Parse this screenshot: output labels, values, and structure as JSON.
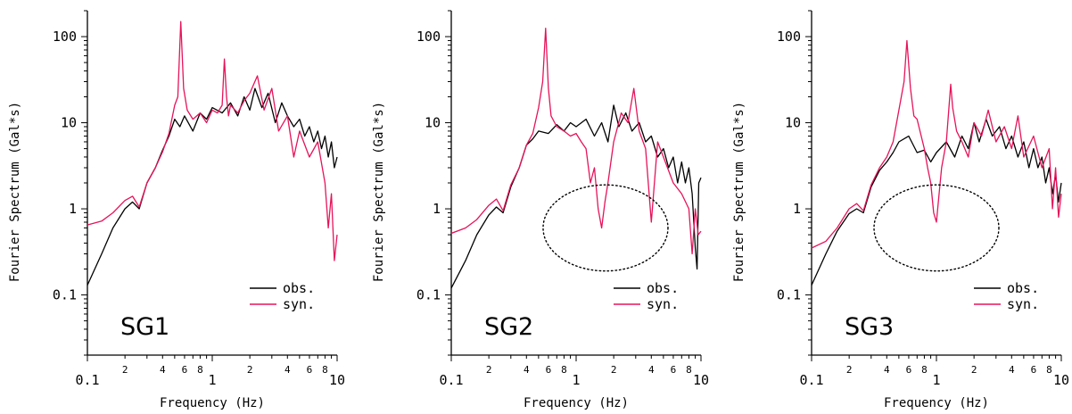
{
  "chart_data": [
    {
      "type": "line",
      "panel_label": "SG1",
      "xlabel": "Frequency (Hz)",
      "ylabel": "Fourier Spectrum (Gal*s)",
      "x_scale": "log",
      "y_scale": "log",
      "xlim": [
        0.1,
        10
      ],
      "ylim": [
        0.02,
        200
      ],
      "x_ticks": [
        {
          "v": 0.1,
          "label": "0.1"
        },
        {
          "v": 1,
          "label": "1"
        },
        {
          "v": 10,
          "label": "10"
        }
      ],
      "x_minor_ticks": [
        {
          "v": 0.2,
          "label": "2"
        },
        {
          "v": 0.4,
          "label": "4"
        },
        {
          "v": 0.6,
          "label": "6"
        },
        {
          "v": 0.8,
          "label": "8"
        },
        {
          "v": 2,
          "label": "2"
        },
        {
          "v": 4,
          "label": "4"
        },
        {
          "v": 6,
          "label": "6"
        },
        {
          "v": 8,
          "label": "8"
        }
      ],
      "y_ticks": [
        {
          "v": 0.1,
          "label": "0.1"
        },
        {
          "v": 1,
          "label": "1"
        },
        {
          "v": 10,
          "label": "10"
        },
        {
          "v": 100,
          "label": "100"
        }
      ],
      "legend": "lower-right",
      "series": [
        {
          "name": "obs.",
          "color": "#000000",
          "x": [
            0.1,
            0.13,
            0.16,
            0.2,
            0.23,
            0.26,
            0.3,
            0.35,
            0.4,
            0.45,
            0.5,
            0.55,
            0.6,
            0.7,
            0.8,
            0.9,
            1.0,
            1.2,
            1.4,
            1.6,
            1.8,
            2.0,
            2.2,
            2.5,
            2.8,
            3.2,
            3.6,
            4.0,
            4.5,
            5.0,
            5.5,
            6.0,
            6.5,
            7.0,
            7.5,
            8.0,
            8.5,
            9.0,
            9.5,
            10.0
          ],
          "y": [
            0.13,
            0.3,
            0.6,
            1.0,
            1.2,
            1.0,
            2.0,
            3.0,
            4.8,
            7.0,
            11.0,
            9.0,
            12.0,
            8.0,
            13.0,
            11.0,
            15.0,
            13.0,
            17.0,
            12.0,
            20.0,
            14.0,
            25.0,
            15.0,
            22.0,
            10.0,
            17.0,
            12.0,
            9.0,
            11.0,
            7.0,
            9.0,
            6.0,
            8.0,
            5.0,
            7.0,
            4.0,
            6.0,
            3.0,
            4.0
          ]
        },
        {
          "name": "syn.",
          "color": "#e6135a",
          "x": [
            0.1,
            0.13,
            0.16,
            0.2,
            0.23,
            0.26,
            0.3,
            0.35,
            0.4,
            0.45,
            0.5,
            0.53,
            0.56,
            0.59,
            0.63,
            0.7,
            0.8,
            0.9,
            1.0,
            1.1,
            1.2,
            1.25,
            1.3,
            1.35,
            1.4,
            1.6,
            1.8,
            2.0,
            2.3,
            2.6,
            3.0,
            3.4,
            4.0,
            4.5,
            5.0,
            6.0,
            7.0,
            8.0,
            8.5,
            9.0,
            9.5,
            10.0
          ],
          "y": [
            0.65,
            0.72,
            0.9,
            1.25,
            1.4,
            1.05,
            2.0,
            3.0,
            4.6,
            7.5,
            16.0,
            20.0,
            150.0,
            25.0,
            14.0,
            11.0,
            13.0,
            10.0,
            14.0,
            13.0,
            16.0,
            55.0,
            20.0,
            12.0,
            16.0,
            13.0,
            18.0,
            22.0,
            35.0,
            14.0,
            25.0,
            8.0,
            12.0,
            4.0,
            8.0,
            4.0,
            6.0,
            2.0,
            0.6,
            1.5,
            0.25,
            0.5
          ]
        }
      ]
    },
    {
      "type": "line",
      "panel_label": "SG2",
      "xlabel": "Frequency (Hz)",
      "ylabel": "Fourier Spectrum (Gal*s)",
      "x_scale": "log",
      "y_scale": "log",
      "xlim": [
        0.1,
        10
      ],
      "ylim": [
        0.02,
        200
      ],
      "x_ticks": [
        {
          "v": 0.1,
          "label": "0.1"
        },
        {
          "v": 1,
          "label": "1"
        },
        {
          "v": 10,
          "label": "10"
        }
      ],
      "x_minor_ticks": [
        {
          "v": 0.2,
          "label": "2"
        },
        {
          "v": 0.4,
          "label": "4"
        },
        {
          "v": 0.6,
          "label": "6"
        },
        {
          "v": 0.8,
          "label": "8"
        },
        {
          "v": 2,
          "label": "2"
        },
        {
          "v": 4,
          "label": "4"
        },
        {
          "v": 6,
          "label": "6"
        },
        {
          "v": 8,
          "label": "8"
        }
      ],
      "y_ticks": [
        {
          "v": 0.1,
          "label": "0.1"
        },
        {
          "v": 1,
          "label": "1"
        },
        {
          "v": 10,
          "label": "10"
        },
        {
          "v": 100,
          "label": "100"
        }
      ],
      "legend": "lower-right",
      "series": [
        {
          "name": "obs.",
          "color": "#000000",
          "x": [
            0.1,
            0.13,
            0.16,
            0.2,
            0.23,
            0.26,
            0.3,
            0.35,
            0.4,
            0.45,
            0.5,
            0.6,
            0.7,
            0.8,
            0.9,
            1.0,
            1.2,
            1.4,
            1.6,
            1.8,
            2.0,
            2.2,
            2.5,
            2.8,
            3.2,
            3.6,
            4.0,
            4.5,
            5.0,
            5.5,
            6.0,
            6.5,
            7.0,
            7.5,
            8.0,
            8.5,
            9.0,
            9.3,
            9.6,
            10.0
          ],
          "y": [
            0.12,
            0.25,
            0.5,
            0.85,
            1.05,
            0.9,
            1.8,
            3.0,
            5.5,
            6.5,
            8.0,
            7.5,
            9.5,
            8.0,
            10.0,
            9.0,
            11.0,
            7.0,
            10.0,
            6.0,
            16.0,
            9.0,
            13.0,
            8.0,
            10.0,
            6.0,
            7.0,
            4.0,
            5.0,
            3.0,
            4.0,
            2.0,
            3.5,
            2.0,
            3.0,
            1.5,
            0.35,
            0.2,
            2.0,
            2.3
          ]
        },
        {
          "name": "syn.",
          "color": "#e6135a",
          "x": [
            0.1,
            0.13,
            0.16,
            0.2,
            0.23,
            0.26,
            0.3,
            0.35,
            0.4,
            0.45,
            0.5,
            0.54,
            0.57,
            0.6,
            0.63,
            0.7,
            0.8,
            0.9,
            1.0,
            1.1,
            1.2,
            1.3,
            1.4,
            1.5,
            1.6,
            1.7,
            1.8,
            2.0,
            2.3,
            2.6,
            2.9,
            3.2,
            3.6,
            4.0,
            4.5,
            5.0,
            6.0,
            7.0,
            8.0,
            8.5,
            9.0,
            9.5,
            10.0
          ],
          "y": [
            0.52,
            0.6,
            0.75,
            1.1,
            1.3,
            0.95,
            1.9,
            3.0,
            5.5,
            7.5,
            15.0,
            30.0,
            125.0,
            25.0,
            12.0,
            9.0,
            8.0,
            7.0,
            7.5,
            6.0,
            5.0,
            2.0,
            3.0,
            1.0,
            0.6,
            1.2,
            2.0,
            6.0,
            13.0,
            10.0,
            25.0,
            8.0,
            5.0,
            0.7,
            6.0,
            4.0,
            2.0,
            1.5,
            1.0,
            0.3,
            1.0,
            0.5,
            0.55
          ]
        }
      ]
    },
    {
      "type": "line",
      "panel_label": "SG3",
      "xlabel": "Frequency (Hz)",
      "ylabel": "Fourier Spectrum (Gal*s)",
      "x_scale": "log",
      "y_scale": "log",
      "xlim": [
        0.1,
        10
      ],
      "ylim": [
        0.02,
        200
      ],
      "x_ticks": [
        {
          "v": 0.1,
          "label": "0.1"
        },
        {
          "v": 1,
          "label": "1"
        },
        {
          "v": 10,
          "label": "10"
        }
      ],
      "x_minor_ticks": [
        {
          "v": 0.2,
          "label": "2"
        },
        {
          "v": 0.4,
          "label": "4"
        },
        {
          "v": 0.6,
          "label": "6"
        },
        {
          "v": 0.8,
          "label": "8"
        },
        {
          "v": 2,
          "label": "2"
        },
        {
          "v": 4,
          "label": "4"
        },
        {
          "v": 6,
          "label": "6"
        },
        {
          "v": 8,
          "label": "8"
        }
      ],
      "y_ticks": [
        {
          "v": 0.1,
          "label": "0.1"
        },
        {
          "v": 1,
          "label": "1"
        },
        {
          "v": 10,
          "label": "10"
        },
        {
          "v": 100,
          "label": "100"
        }
      ],
      "legend": "lower-right",
      "series": [
        {
          "name": "obs.",
          "color": "#000000",
          "x": [
            0.1,
            0.13,
            0.16,
            0.2,
            0.23,
            0.26,
            0.3,
            0.35,
            0.4,
            0.45,
            0.5,
            0.6,
            0.7,
            0.8,
            0.9,
            1.0,
            1.2,
            1.4,
            1.6,
            1.8,
            2.0,
            2.2,
            2.5,
            2.8,
            3.2,
            3.6,
            4.0,
            4.5,
            5.0,
            5.5,
            6.0,
            6.5,
            7.0,
            7.5,
            8.0,
            8.5,
            9.0,
            9.5,
            10.0
          ],
          "y": [
            0.13,
            0.3,
            0.55,
            0.88,
            1.0,
            0.9,
            1.8,
            2.8,
            3.5,
            4.5,
            6.0,
            7.0,
            4.5,
            4.8,
            3.5,
            4.5,
            6.0,
            4.0,
            7.0,
            5.0,
            10.0,
            6.0,
            11.0,
            7.0,
            9.0,
            5.0,
            7.0,
            4.0,
            6.0,
            3.0,
            5.0,
            3.0,
            4.0,
            2.0,
            3.0,
            1.5,
            2.5,
            1.2,
            2.0
          ]
        },
        {
          "name": "syn.",
          "color": "#e6135a",
          "x": [
            0.1,
            0.13,
            0.16,
            0.2,
            0.23,
            0.26,
            0.3,
            0.35,
            0.4,
            0.45,
            0.5,
            0.55,
            0.58,
            0.62,
            0.66,
            0.7,
            0.8,
            0.85,
            0.9,
            0.95,
            1.0,
            1.05,
            1.1,
            1.2,
            1.3,
            1.35,
            1.45,
            1.6,
            1.8,
            2.0,
            2.3,
            2.6,
            3.0,
            3.5,
            4.0,
            4.5,
            5.0,
            6.0,
            7.0,
            8.0,
            8.5,
            9.0,
            9.5,
            10.0
          ],
          "y": [
            0.35,
            0.42,
            0.6,
            1.0,
            1.15,
            0.95,
            1.9,
            3.0,
            4.0,
            6.0,
            14.0,
            30.0,
            90.0,
            25.0,
            12.0,
            11.0,
            5.0,
            3.0,
            2.0,
            0.9,
            0.7,
            1.5,
            3.0,
            6.0,
            28.0,
            15.0,
            8.0,
            6.0,
            4.0,
            10.0,
            7.0,
            14.0,
            6.0,
            9.0,
            5.0,
            12.0,
            4.0,
            7.0,
            3.0,
            5.0,
            1.0,
            3.0,
            0.8,
            1.5
          ]
        }
      ]
    }
  ],
  "legend_labels": {
    "obs": "obs.",
    "syn": "syn."
  },
  "annotations": [
    {
      "panel": 1,
      "shape": "dotted-circle",
      "center": [
        1.72,
        0.6
      ],
      "diameter_decades": 1.0
    },
    {
      "panel": 2,
      "shape": "dotted-circle",
      "center": [
        1.0,
        0.6
      ],
      "diameter_decades": 1.0
    }
  ]
}
